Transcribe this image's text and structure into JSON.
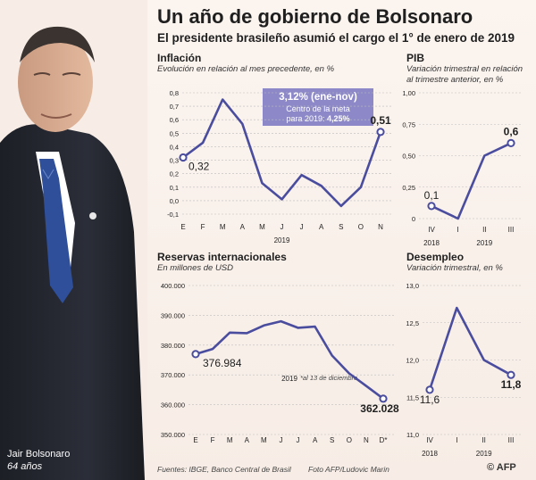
{
  "header": {
    "title": "Un año de gobierno de Bolsonaro",
    "subtitle": "El presidente brasileño asumió el cargo el 1° de enero de 2019"
  },
  "person": {
    "name": "Jair Bolsonaro",
    "age": "64 años"
  },
  "footer": {
    "sources": "Fuentes: IBGE, Banco Central de Brasil",
    "photo": "Foto AFP/Ludovic Marin",
    "logo": "© AFP"
  },
  "colors": {
    "line": "#4a4c9e",
    "note_bg": "#8d89c9",
    "grid": "#bdbdbd",
    "text": "#1f1f1f"
  },
  "chart_data": [
    {
      "id": "inflacion",
      "type": "line",
      "title": "Inflación",
      "subtitle": "Evolución en relación al mes precedente, en %",
      "categories": [
        "E",
        "F",
        "M",
        "A",
        "M",
        "J",
        "J",
        "A",
        "S",
        "O",
        "N"
      ],
      "values": [
        0.32,
        0.43,
        0.75,
        0.57,
        0.13,
        0.01,
        0.19,
        0.11,
        -0.04,
        0.1,
        0.51
      ],
      "ylim": [
        -0.1,
        0.8
      ],
      "yticks": [
        "0,8",
        "0,7",
        "0,6",
        "0,5",
        "0,4",
        "0,3",
        "0,2",
        "0,1",
        "0,0",
        "-0,1"
      ],
      "year_label": "2019",
      "labels": [
        {
          "index": 0,
          "text": "0,32"
        },
        {
          "index": 10,
          "text": "0,51"
        }
      ],
      "note": {
        "main": "3,12% (ene-nov)",
        "line1": "Centro de la meta",
        "line2_prefix": "para 2019: ",
        "line2_value": "4,25%"
      }
    },
    {
      "id": "pib",
      "type": "line",
      "title": "PIB",
      "subtitle": "Variación trimestral en relación al trimestre anterior, en %",
      "categories": [
        "IV",
        "I",
        "II",
        "III"
      ],
      "values": [
        0.1,
        0.0,
        0.5,
        0.6
      ],
      "ylim": [
        0,
        1.0
      ],
      "yticks": [
        "1,00",
        "0,75",
        "0,50",
        "0,25",
        "0"
      ],
      "year_labels": [
        {
          "text": "2018",
          "index": 0
        },
        {
          "text": "2019",
          "index": 2
        }
      ],
      "labels": [
        {
          "index": 0,
          "text": "0,1"
        },
        {
          "index": 3,
          "text": "0,6"
        }
      ]
    },
    {
      "id": "reservas",
      "type": "line",
      "title": "Reservas internacionales",
      "subtitle": "En millones de USD",
      "categories": [
        "E",
        "F",
        "M",
        "A",
        "M",
        "J",
        "J",
        "A",
        "S",
        "O",
        "N",
        "D*"
      ],
      "values": [
        376984,
        378700,
        384200,
        384000,
        386600,
        388000,
        385800,
        386200,
        376500,
        370500,
        366300,
        362028
      ],
      "ylim": [
        350000,
        400000
      ],
      "yticks": [
        "400.000",
        "390.000",
        "380.000",
        "370.000",
        "360.000",
        "350.000"
      ],
      "year_label": "2019",
      "footnote": "*al 13 de diciembre",
      "labels": [
        {
          "index": 0,
          "text": "376.984"
        },
        {
          "index": 11,
          "text": "362.028"
        }
      ]
    },
    {
      "id": "desempleo",
      "type": "line",
      "title": "Desempleo",
      "subtitle": "Variación trimestral, en %",
      "categories": [
        "IV",
        "I",
        "II",
        "III"
      ],
      "values": [
        11.6,
        12.7,
        12.0,
        11.8
      ],
      "ylim": [
        11.0,
        13.0
      ],
      "yticks": [
        "13,0",
        "12,5",
        "12,0",
        "11,5",
        "11,0"
      ],
      "year_labels": [
        {
          "text": "2018",
          "index": 0
        },
        {
          "text": "2019",
          "index": 2
        }
      ],
      "labels": [
        {
          "index": 0,
          "text": "11,6"
        },
        {
          "index": 3,
          "text": "11,8"
        }
      ]
    }
  ]
}
